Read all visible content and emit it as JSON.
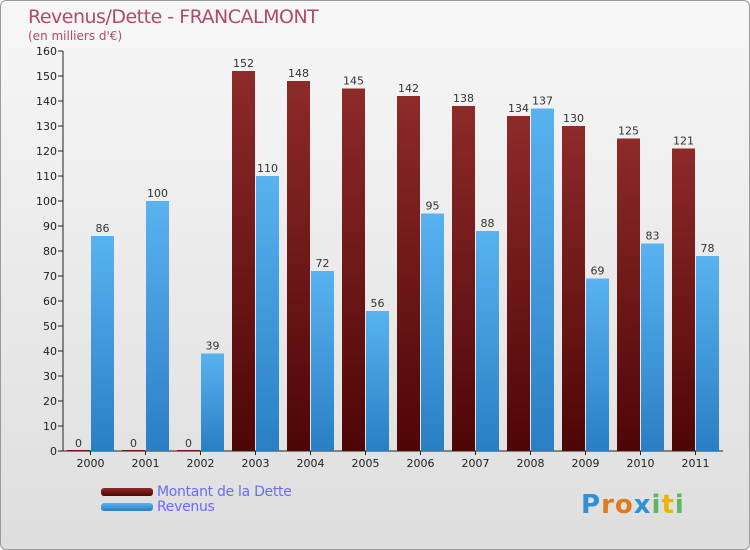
{
  "title": "Revenus/Dette - FRANCALMONT",
  "subtitle": "(en milliers d'€)",
  "logo": {
    "letters": [
      "P",
      "r",
      "o",
      "x",
      "i",
      "t",
      "i"
    ],
    "colors": [
      "#2f8fd8",
      "#e07a1e",
      "#e07a1e",
      "#2f8fd8",
      "#5cb85c",
      "#e6b800",
      "#5cb85c"
    ]
  },
  "chart_data": {
    "type": "bar",
    "categories": [
      "2000",
      "2001",
      "2002",
      "2003",
      "2004",
      "2005",
      "2006",
      "2007",
      "2008",
      "2009",
      "2010",
      "2011"
    ],
    "series": [
      {
        "name": "Montant de la Dette",
        "values": [
          0,
          0,
          0,
          152,
          148,
          145,
          142,
          138,
          134,
          130,
          125,
          121
        ],
        "color": "#7a1a1a"
      },
      {
        "name": "Revenus",
        "values": [
          86,
          100,
          39,
          110,
          72,
          56,
          95,
          88,
          137,
          69,
          83,
          78
        ],
        "color": "#3d9be0"
      }
    ],
    "ylim": [
      0,
      160
    ],
    "yticks": [
      0,
      10,
      20,
      30,
      40,
      50,
      60,
      70,
      80,
      90,
      100,
      110,
      120,
      130,
      140,
      150,
      160
    ],
    "grid": false,
    "legend": "bottom-left"
  }
}
